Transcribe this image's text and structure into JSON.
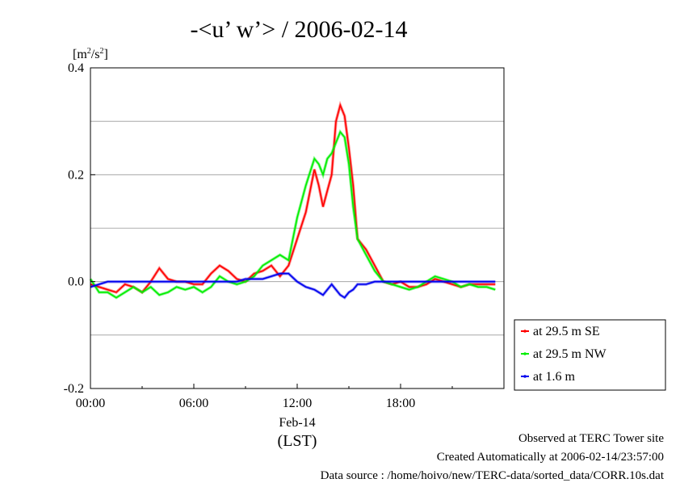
{
  "chart_data": {
    "type": "line",
    "title": "-<u’ w’> / 2006-02-14",
    "ylabel_base": "[m",
    "ylabel_sup1": "2",
    "ylabel_mid": "/s",
    "ylabel_sup2": "2",
    "ylabel_end": "]",
    "xlabel_date": "Feb-14",
    "xlabel_tz": "(LST)",
    "xlim": [
      0,
      24
    ],
    "ylim": [
      -0.2,
      0.4
    ],
    "grid": true,
    "legend_position": "right",
    "x_ticks": [
      {
        "value": 0,
        "label": "00:00"
      },
      {
        "value": 6,
        "label": "06:00"
      },
      {
        "value": 12,
        "label": "12:00"
      },
      {
        "value": 18,
        "label": "18:00"
      }
    ],
    "y_ticks": [
      {
        "value": -0.2,
        "label": "-0.2"
      },
      {
        "value": 0.0,
        "label": "0.0"
      },
      {
        "value": 0.2,
        "label": "0.2"
      },
      {
        "value": 0.4,
        "label": "0.4"
      }
    ],
    "series": [
      {
        "name": "at 29.5 m SE",
        "color": "#ff0000",
        "x": [
          0,
          0.5,
          1,
          1.5,
          2,
          2.5,
          3,
          3.5,
          4,
          4.5,
          5,
          5.5,
          6,
          6.5,
          7,
          7.5,
          8,
          8.5,
          9,
          9.5,
          10,
          10.5,
          11,
          11.5,
          12,
          12.5,
          13,
          13.25,
          13.5,
          13.75,
          14,
          14.25,
          14.5,
          14.75,
          15,
          15.25,
          15.5,
          16,
          16.5,
          17,
          17.5,
          18,
          18.5,
          19,
          19.5,
          20,
          20.5,
          21,
          21.5,
          22,
          22.5,
          23,
          23.5
        ],
        "y": [
          -0.005,
          -0.01,
          -0.015,
          -0.02,
          -0.005,
          -0.01,
          -0.02,
          0.0,
          0.025,
          0.005,
          0.0,
          0.0,
          -0.005,
          -0.005,
          0.015,
          0.03,
          0.02,
          0.005,
          0.0,
          0.015,
          0.02,
          0.03,
          0.01,
          0.03,
          0.08,
          0.13,
          0.21,
          0.18,
          0.14,
          0.17,
          0.2,
          0.3,
          0.33,
          0.31,
          0.25,
          0.18,
          0.08,
          0.06,
          0.03,
          0.0,
          -0.005,
          0.0,
          -0.01,
          -0.01,
          -0.005,
          0.005,
          0.0,
          -0.005,
          -0.01,
          -0.005,
          -0.005,
          -0.005,
          -0.005
        ]
      },
      {
        "name": "at 29.5 m NW",
        "color": "#00ee00",
        "x": [
          0,
          0.5,
          1,
          1.5,
          2,
          2.5,
          3,
          3.5,
          4,
          4.5,
          5,
          5.5,
          6,
          6.5,
          7,
          7.5,
          8,
          8.5,
          9,
          9.5,
          10,
          10.5,
          11,
          11.5,
          12,
          12.5,
          13,
          13.25,
          13.5,
          13.75,
          14,
          14.25,
          14.5,
          14.75,
          15,
          15.25,
          15.5,
          16,
          16.5,
          17,
          17.5,
          18,
          18.5,
          19,
          19.5,
          20,
          20.5,
          21,
          21.5,
          22,
          22.5,
          23,
          23.5
        ],
        "y": [
          0.005,
          -0.02,
          -0.02,
          -0.03,
          -0.02,
          -0.01,
          -0.02,
          -0.01,
          -0.025,
          -0.02,
          -0.01,
          -0.015,
          -0.01,
          -0.02,
          -0.01,
          0.01,
          0.0,
          -0.005,
          0.0,
          0.01,
          0.03,
          0.04,
          0.05,
          0.04,
          0.12,
          0.18,
          0.23,
          0.22,
          0.2,
          0.23,
          0.24,
          0.26,
          0.28,
          0.27,
          0.22,
          0.14,
          0.08,
          0.05,
          0.02,
          0.0,
          -0.005,
          -0.01,
          -0.015,
          -0.01,
          0.0,
          0.01,
          0.005,
          0.0,
          -0.01,
          -0.005,
          -0.01,
          -0.01,
          -0.015
        ]
      },
      {
        "name": "at 1.6 m",
        "color": "#0000ee",
        "x": [
          0,
          0.5,
          1,
          1.5,
          2,
          2.5,
          3,
          3.5,
          4,
          4.5,
          5,
          5.5,
          6,
          6.5,
          7,
          7.5,
          8,
          8.5,
          9,
          9.5,
          10,
          10.5,
          11,
          11.5,
          12,
          12.5,
          13,
          13.25,
          13.5,
          13.75,
          14,
          14.25,
          14.5,
          14.75,
          15,
          15.25,
          15.5,
          16,
          16.5,
          17,
          17.5,
          18,
          18.5,
          19,
          19.5,
          20,
          20.5,
          21,
          21.5,
          22,
          22.5,
          23,
          23.5
        ],
        "y": [
          -0.01,
          -0.005,
          0.0,
          0.0,
          0.0,
          0.0,
          0.0,
          0.0,
          0.0,
          0.0,
          0.0,
          0.0,
          0.0,
          0.0,
          0.0,
          0.0,
          0.0,
          0.0,
          0.005,
          0.005,
          0.005,
          0.01,
          0.015,
          0.015,
          0.0,
          -0.01,
          -0.015,
          -0.02,
          -0.025,
          -0.015,
          -0.005,
          -0.015,
          -0.025,
          -0.03,
          -0.02,
          -0.015,
          -0.005,
          -0.005,
          0.0,
          0.0,
          0.0,
          0.0,
          0.0,
          0.0,
          0.0,
          0.0,
          0.0,
          0.0,
          0.0,
          0.0,
          0.0,
          0.0,
          0.0
        ]
      }
    ]
  },
  "footer": {
    "line1": "Observed at TERC Tower site",
    "line2": "Created Automatically at 2006-02-14/23:57:00",
    "line3": "Data source : /home/hoivo/new/TERC-data/sorted_data/CORR.10s.dat"
  }
}
